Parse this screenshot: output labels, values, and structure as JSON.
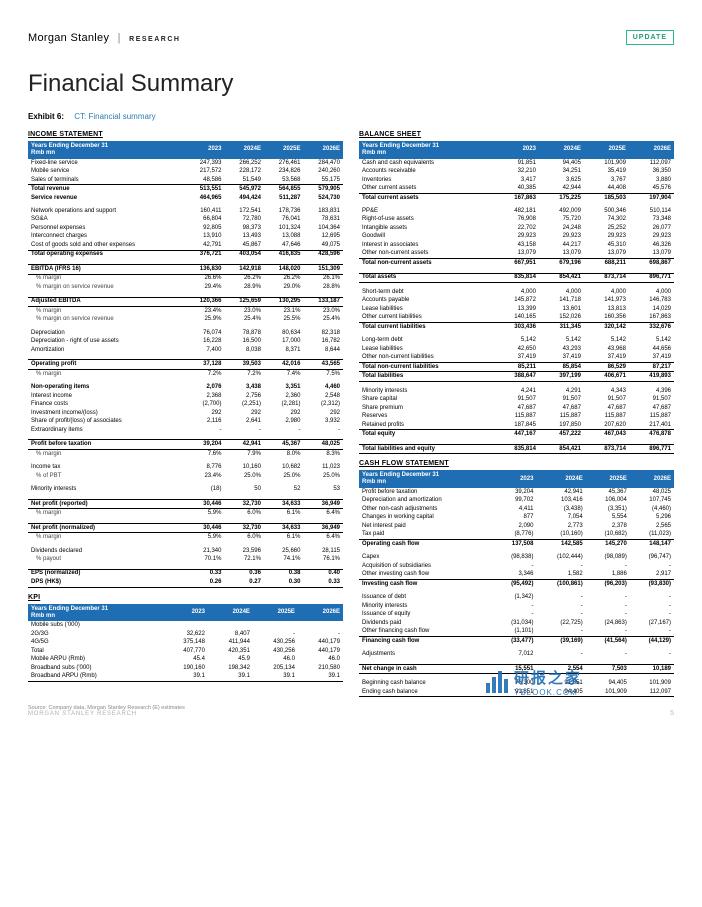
{
  "brand": {
    "name": "Morgan Stanley",
    "research": "RESEARCH",
    "badge": "UPDATE"
  },
  "page_title": "Financial Summary",
  "exhibit": {
    "num": "Exhibit 6:",
    "caption": "CT: Financial summary"
  },
  "colors": {
    "header_bg": "#1f6db3",
    "header_fg": "#ffffff",
    "accent": "#2bb88a",
    "link": "#2a7db8"
  },
  "years": [
    "2023",
    "2024E",
    "2025E",
    "2026E"
  ],
  "income": {
    "title": "INCOME STATEMENT",
    "header_left": "Years Ending December 31\nRmb mn",
    "rows": [
      {
        "k": "Fixed-line service",
        "v": [
          "247,393",
          "266,252",
          "276,461",
          "284,470"
        ]
      },
      {
        "k": "Mobile service",
        "v": [
          "217,572",
          "228,172",
          "234,826",
          "240,260"
        ]
      },
      {
        "k": "Sales of terminals",
        "v": [
          "48,586",
          "51,549",
          "53,568",
          "55,175"
        ],
        "line_bot": true
      },
      {
        "k": "Total revenue",
        "v": [
          "513,551",
          "545,972",
          "564,855",
          "579,905"
        ],
        "bold": true
      },
      {
        "k": "Service revenue",
        "v": [
          "464,965",
          "494,424",
          "511,287",
          "524,730"
        ],
        "bold": true
      },
      {
        "spacer": true
      },
      {
        "k": "Network operations and support",
        "v": [
          "160,411",
          "172,541",
          "178,736",
          "183,831"
        ]
      },
      {
        "k": "SG&A",
        "v": [
          "66,804",
          "72,780",
          "76,041",
          "78,631"
        ]
      },
      {
        "k": "Personnel expenses",
        "v": [
          "92,805",
          "98,373",
          "101,324",
          "104,364"
        ]
      },
      {
        "k": "Interconnect charges",
        "v": [
          "13,910",
          "13,493",
          "13,088",
          "12,695"
        ]
      },
      {
        "k": "Cost of goods sold and other expenses",
        "v": [
          "42,791",
          "45,867",
          "47,646",
          "49,075"
        ],
        "line_bot": true
      },
      {
        "k": "Total operating expenses",
        "v": [
          "376,721",
          "403,054",
          "416,835",
          "428,596"
        ],
        "bold": true
      },
      {
        "spacer": true
      },
      {
        "k": "EBITDA (IFRS 16)",
        "v": [
          "136,830",
          "142,918",
          "148,020",
          "151,309"
        ],
        "bold": true,
        "line_top": true,
        "line_bot": true
      },
      {
        "k": "% margin",
        "v": [
          "26.6%",
          "26.2%",
          "26.2%",
          "26.1%"
        ],
        "sub": true
      },
      {
        "k": "% margin on service revenue",
        "v": [
          "29.4%",
          "28.9%",
          "29.0%",
          "28.8%"
        ],
        "sub": true
      },
      {
        "spacer": true
      },
      {
        "k": "Adjusted EBITDA",
        "v": [
          "120,366",
          "125,659",
          "130,295",
          "133,187"
        ],
        "bold": true,
        "line_top": true,
        "line_bot": true
      },
      {
        "k": "% margin",
        "v": [
          "23.4%",
          "23.0%",
          "23.1%",
          "23.0%"
        ],
        "sub": true
      },
      {
        "k": "% margin on service revenue",
        "v": [
          "25.9%",
          "25.4%",
          "25.5%",
          "25.4%"
        ],
        "sub": true
      },
      {
        "spacer": true
      },
      {
        "k": "Depreciation",
        "v": [
          "76,074",
          "78,878",
          "80,634",
          "82,318"
        ]
      },
      {
        "k": "Depreciation - right of use assets",
        "v": [
          "16,228",
          "16,500",
          "17,000",
          "16,782"
        ]
      },
      {
        "k": "Amortization",
        "v": [
          "7,400",
          "8,038",
          "8,371",
          "8,644"
        ]
      },
      {
        "spacer": true
      },
      {
        "k": "Operating profit",
        "v": [
          "37,128",
          "39,503",
          "42,016",
          "43,565"
        ],
        "bold": true,
        "line_top": true,
        "line_bot": true
      },
      {
        "k": "% margin",
        "v": [
          "7.2%",
          "7.2%",
          "7.4%",
          "7.5%"
        ],
        "sub": true
      },
      {
        "spacer": true
      },
      {
        "k": "Non-operating items",
        "v": [
          "2,076",
          "3,438",
          "3,351",
          "4,460"
        ],
        "bold": true
      },
      {
        "k": "Interest income",
        "v": [
          "2,368",
          "2,756",
          "2,360",
          "2,548"
        ]
      },
      {
        "k": "Finance costs",
        "v": [
          "(2,700)",
          "(2,251)",
          "(2,281)",
          "(2,312)"
        ]
      },
      {
        "k": "Investment income/(loss)",
        "v": [
          "292",
          "292",
          "292",
          "292"
        ]
      },
      {
        "k": "Share of profit/(loss) of associates",
        "v": [
          "2,116",
          "2,641",
          "2,980",
          "3,932"
        ]
      },
      {
        "k": "Extraordinary items",
        "v": [
          "-",
          "-",
          "-",
          "-"
        ]
      },
      {
        "spacer": true
      },
      {
        "k": "Profit before taxation",
        "v": [
          "39,204",
          "42,941",
          "45,367",
          "48,025"
        ],
        "bold": true,
        "line_top": true,
        "line_bot": true
      },
      {
        "k": "% margin",
        "v": [
          "7.6%",
          "7.9%",
          "8.0%",
          "8.3%"
        ],
        "sub": true
      },
      {
        "spacer": true
      },
      {
        "k": "Income tax",
        "v": [
          "8,776",
          "10,160",
          "10,682",
          "11,023"
        ]
      },
      {
        "k": "% of PBT",
        "v": [
          "23.4%",
          "25.0%",
          "25.0%",
          "25.0%"
        ],
        "sub": true
      },
      {
        "spacer": true
      },
      {
        "k": "Minority interests",
        "v": [
          "(18)",
          "50",
          "52",
          "53"
        ]
      },
      {
        "spacer": true
      },
      {
        "k": "Net profit (reported)",
        "v": [
          "30,446",
          "32,730",
          "34,633",
          "36,949"
        ],
        "bold": true,
        "line_top": true,
        "line_bot": true
      },
      {
        "k": "% margin",
        "v": [
          "5.9%",
          "6.0%",
          "6.1%",
          "6.4%"
        ],
        "sub": true
      },
      {
        "spacer": true
      },
      {
        "k": "Net profit (normalized)",
        "v": [
          "30,446",
          "32,730",
          "34,633",
          "36,949"
        ],
        "bold": true,
        "line_top": true,
        "line_bot": true
      },
      {
        "k": "% margin",
        "v": [
          "5.9%",
          "6.0%",
          "6.1%",
          "6.4%"
        ],
        "sub": true
      },
      {
        "spacer": true
      },
      {
        "k": "Dividends declared",
        "v": [
          "21,340",
          "23,596",
          "25,660",
          "28,115"
        ]
      },
      {
        "k": "% payout",
        "v": [
          "70.1%",
          "72.1%",
          "74.1%",
          "76.1%"
        ],
        "sub": true
      },
      {
        "spacer": true
      },
      {
        "k": "EPS (normalized)",
        "v": [
          "0.33",
          "0.36",
          "0.38",
          "0.40"
        ],
        "bold": true,
        "line_top": true
      },
      {
        "k": "DPS (HK$)",
        "v": [
          "0.26",
          "0.27",
          "0.30",
          "0.33"
        ],
        "bold": true,
        "line_bot": true
      }
    ]
  },
  "kpi": {
    "title": "KPI",
    "header_left": "Years Ending December 31\nRmb mn",
    "rows": [
      {
        "k": "Mobile subs ('000)",
        "v": [
          "",
          "",
          "",
          ""
        ]
      },
      {
        "k": "2G/3G",
        "v": [
          "32,622",
          "8,407",
          "-",
          "-"
        ]
      },
      {
        "k": "4G/5G",
        "v": [
          "375,148",
          "411,944",
          "430,256",
          "440,179"
        ]
      },
      {
        "k": "Total",
        "v": [
          "407,770",
          "420,351",
          "430,256",
          "440,179"
        ]
      },
      {
        "k": "Mobile ARPU (Rmb)",
        "v": [
          "45.4",
          "45.9",
          "46.0",
          "46.0"
        ]
      },
      {
        "k": "Broadband subs ('000)",
        "v": [
          "190,160",
          "198,342",
          "205,134",
          "210,580"
        ]
      },
      {
        "k": "Broadband ARPU (Rmb)",
        "v": [
          "39.1",
          "39.1",
          "39.1",
          "39.1"
        ],
        "line_bot": true
      }
    ]
  },
  "balance": {
    "title": "BALANCE SHEET",
    "header_left": "Years Ending December 31\nRmb mn",
    "rows": [
      {
        "k": "Cash and cash equivalents",
        "v": [
          "91,851",
          "94,405",
          "101,909",
          "112,097"
        ]
      },
      {
        "k": "Accounts receivable",
        "v": [
          "32,210",
          "34,251",
          "35,419",
          "36,350"
        ]
      },
      {
        "k": "Inventories",
        "v": [
          "3,417",
          "3,625",
          "3,767",
          "3,880"
        ]
      },
      {
        "k": "Other current assets",
        "v": [
          "40,385",
          "42,944",
          "44,408",
          "45,576"
        ],
        "line_bot": true
      },
      {
        "k": "Total current assets",
        "v": [
          "167,863",
          "175,225",
          "185,503",
          "197,904"
        ],
        "bold": true
      },
      {
        "spacer": true
      },
      {
        "k": "PP&E",
        "v": [
          "482,181",
          "492,009",
          "500,346",
          "510,114"
        ]
      },
      {
        "k": "Right-of-use assets",
        "v": [
          "76,908",
          "75,720",
          "74,302",
          "73,348"
        ]
      },
      {
        "k": "Intangible assets",
        "v": [
          "22,702",
          "24,248",
          "25,252",
          "26,077"
        ]
      },
      {
        "k": "Goodwill",
        "v": [
          "29,923",
          "29,923",
          "29,923",
          "29,923"
        ]
      },
      {
        "k": "Interest in associates",
        "v": [
          "43,158",
          "44,217",
          "45,310",
          "46,326"
        ]
      },
      {
        "k": "Other non-current assets",
        "v": [
          "13,079",
          "13,079",
          "13,079",
          "13,079"
        ],
        "line_bot": true
      },
      {
        "k": "Total non-current assets",
        "v": [
          "667,951",
          "679,196",
          "688,211",
          "698,867"
        ],
        "bold": true
      },
      {
        "spacer": true
      },
      {
        "k": "Total assets",
        "v": [
          "835,814",
          "854,421",
          "873,714",
          "896,771"
        ],
        "bold": true,
        "line_top": true,
        "line_bot": true
      },
      {
        "spacer": true
      },
      {
        "k": "Short-term debt",
        "v": [
          "4,000",
          "4,000",
          "4,000",
          "4,000"
        ]
      },
      {
        "k": "Accounts payable",
        "v": [
          "145,872",
          "141,718",
          "141,973",
          "146,783"
        ]
      },
      {
        "k": "Lease liabilities",
        "v": [
          "13,399",
          "13,601",
          "13,813",
          "14,029"
        ]
      },
      {
        "k": "Other current liabilities",
        "v": [
          "140,165",
          "152,026",
          "160,356",
          "167,863"
        ],
        "line_bot": true
      },
      {
        "k": "Total current liabilities",
        "v": [
          "303,436",
          "311,345",
          "320,142",
          "332,676"
        ],
        "bold": true
      },
      {
        "spacer": true
      },
      {
        "k": "Long-term debt",
        "v": [
          "5,142",
          "5,142",
          "5,142",
          "5,142"
        ]
      },
      {
        "k": "Lease liabilities",
        "v": [
          "42,650",
          "43,293",
          "43,968",
          "44,656"
        ]
      },
      {
        "k": "Other non-current liabilities",
        "v": [
          "37,419",
          "37,419",
          "37,419",
          "37,419"
        ],
        "line_bot": true
      },
      {
        "k": "Total non-current liabilities",
        "v": [
          "85,211",
          "85,854",
          "86,529",
          "87,217"
        ],
        "bold": true
      },
      {
        "k": "Total liabilities",
        "v": [
          "388,647",
          "397,199",
          "406,671",
          "419,893"
        ],
        "bold": true,
        "line_top": true,
        "line_bot": true
      },
      {
        "spacer": true
      },
      {
        "k": "Minority interests",
        "v": [
          "4,241",
          "4,291",
          "4,343",
          "4,396"
        ]
      },
      {
        "k": "Share capital",
        "v": [
          "91,507",
          "91,507",
          "91,507",
          "91,507"
        ]
      },
      {
        "k": "Share premium",
        "v": [
          "47,687",
          "47,687",
          "47,687",
          "47,687"
        ]
      },
      {
        "k": "Reserves",
        "v": [
          "115,887",
          "115,887",
          "115,887",
          "115,887"
        ]
      },
      {
        "k": "Retained profits",
        "v": [
          "187,845",
          "197,850",
          "207,620",
          "217,401"
        ],
        "line_bot": true
      },
      {
        "k": "Total equity",
        "v": [
          "447,167",
          "457,222",
          "467,043",
          "476,878"
        ],
        "bold": true
      },
      {
        "spacer": true
      },
      {
        "k": "Total liabilities and equity",
        "v": [
          "835,814",
          "854,421",
          "873,714",
          "896,771"
        ],
        "bold": true,
        "line_top": true,
        "line_bot": true
      }
    ]
  },
  "cashflow": {
    "title": "CASH FLOW STATEMENT",
    "header_left": "Years Ending December 31\nRmb mn",
    "rows": [
      {
        "k": "Profit before taxation",
        "v": [
          "39,204",
          "42,941",
          "45,367",
          "48,025"
        ]
      },
      {
        "k": "Depreciation and amortization",
        "v": [
          "99,702",
          "103,416",
          "106,004",
          "107,745"
        ]
      },
      {
        "k": "Other non-cash adjustments",
        "v": [
          "4,411",
          "(3,438)",
          "(3,351)",
          "(4,460)"
        ]
      },
      {
        "k": "Changes in working capital",
        "v": [
          "877",
          "7,054",
          "5,554",
          "5,296"
        ]
      },
      {
        "k": "Net interest paid",
        "v": [
          "2,090",
          "2,773",
          "2,378",
          "2,565"
        ]
      },
      {
        "k": "Tax paid",
        "v": [
          "(8,776)",
          "(10,160)",
          "(10,682)",
          "(11,023)"
        ],
        "line_bot": true
      },
      {
        "k": "Operating cash flow",
        "v": [
          "137,508",
          "142,585",
          "145,270",
          "148,147"
        ],
        "bold": true
      },
      {
        "spacer": true
      },
      {
        "k": "Capex",
        "v": [
          "(98,838)",
          "(102,444)",
          "(98,089)",
          "(96,747)"
        ]
      },
      {
        "k": "Acquisition of subsidiaries",
        "v": [
          "-",
          "-",
          "-",
          "-"
        ]
      },
      {
        "k": "Other investing cash flow",
        "v": [
          "3,346",
          "1,582",
          "1,886",
          "2,917"
        ],
        "line_bot": true
      },
      {
        "k": "Investing cash flow",
        "v": [
          "(95,492)",
          "(100,861)",
          "(96,203)",
          "(93,830)"
        ],
        "bold": true
      },
      {
        "spacer": true
      },
      {
        "k": "Issuance of debt",
        "v": [
          "(1,342)",
          "-",
          "-",
          "-"
        ]
      },
      {
        "k": "Minority interests",
        "v": [
          "-",
          "-",
          "-",
          "-"
        ]
      },
      {
        "k": "Issuance of equity",
        "v": [
          "-",
          "-",
          "-",
          "-"
        ]
      },
      {
        "k": "Dividends paid",
        "v": [
          "(31,034)",
          "(22,725)",
          "(24,863)",
          "(27,167)"
        ]
      },
      {
        "k": "Other financing cash flow",
        "v": [
          "(1,101)",
          "-",
          "-",
          "-"
        ],
        "line_bot": true
      },
      {
        "k": "Financing cash flow",
        "v": [
          "(33,477)",
          "(39,169)",
          "(41,564)",
          "(44,129)"
        ],
        "bold": true
      },
      {
        "spacer": true
      },
      {
        "k": "Adjustments",
        "v": [
          "7,012",
          "-",
          "-",
          "-"
        ]
      },
      {
        "spacer": true
      },
      {
        "k": "Net change in cash",
        "v": [
          "15,551",
          "2,554",
          "7,503",
          "10,189"
        ],
        "bold": true,
        "line_top": true,
        "line_bot": true
      },
      {
        "spacer": true
      },
      {
        "k": "Beginning cash balance",
        "v": [
          "76,300",
          "91,851",
          "94,405",
          "101,909"
        ]
      },
      {
        "k": "Ending cash balance",
        "v": [
          "91,851",
          "94,405",
          "101,909",
          "112,097"
        ],
        "line_bot": true
      }
    ]
  },
  "source_note": "Source: Company data, Morgan Stanley Research (E) estimates",
  "footer": {
    "left": "MORGAN STANLEY RESEARCH",
    "page": "5"
  },
  "watermark": {
    "cn": "研报之家",
    "url": "YBLOOK.COM"
  }
}
